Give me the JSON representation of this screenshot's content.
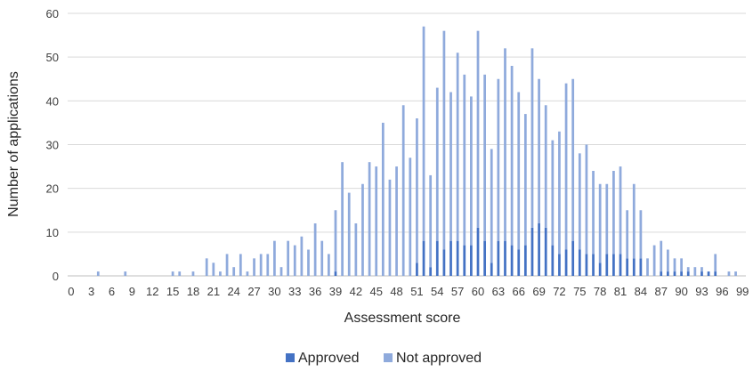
{
  "chart_data": {
    "type": "bar",
    "stacked": true,
    "title": "",
    "xlabel": "Assessment score",
    "ylabel": "Number of applications",
    "ylim": [
      0,
      60
    ],
    "yticks": [
      0,
      10,
      20,
      30,
      40,
      50,
      60
    ],
    "grid": true,
    "legend_position": "bottom",
    "x": [
      0,
      1,
      2,
      3,
      4,
      5,
      6,
      7,
      8,
      9,
      10,
      11,
      12,
      13,
      14,
      15,
      16,
      17,
      18,
      19,
      20,
      21,
      22,
      23,
      24,
      25,
      26,
      27,
      28,
      29,
      30,
      31,
      32,
      33,
      34,
      35,
      36,
      37,
      38,
      39,
      40,
      41,
      42,
      43,
      44,
      45,
      46,
      47,
      48,
      49,
      50,
      51,
      52,
      53,
      54,
      55,
      56,
      57,
      58,
      59,
      60,
      61,
      62,
      63,
      64,
      65,
      66,
      67,
      68,
      69,
      70,
      71,
      72,
      73,
      74,
      75,
      76,
      77,
      78,
      79,
      80,
      81,
      82,
      83,
      84,
      85,
      86,
      87,
      88,
      89,
      90,
      91,
      92,
      93,
      94,
      95,
      96,
      97,
      98,
      99
    ],
    "xtick_labels": [
      "0",
      "3",
      "6",
      "9",
      "12",
      "15",
      "18",
      "21",
      "24",
      "27",
      "30",
      "33",
      "36",
      "39",
      "42",
      "45",
      "48",
      "51",
      "54",
      "57",
      "60",
      "63",
      "66",
      "69",
      "72",
      "75",
      "78",
      "81",
      "84",
      "87",
      "90",
      "93",
      "96",
      "99"
    ],
    "series": [
      {
        "name": "Approved",
        "color": "#4472C4",
        "values": [
          0,
          0,
          0,
          0,
          0,
          0,
          0,
          0,
          0,
          0,
          0,
          0,
          0,
          0,
          0,
          0,
          0,
          0,
          0,
          0,
          0,
          0,
          0,
          0,
          0,
          0,
          0,
          0,
          0,
          0,
          0,
          0,
          0,
          0,
          0,
          0,
          0,
          0,
          0,
          1,
          0,
          0,
          0,
          0,
          0,
          0,
          0,
          0,
          0,
          0,
          0,
          3,
          8,
          2,
          8,
          6,
          8,
          8,
          7,
          7,
          11,
          8,
          3,
          8,
          8,
          7,
          6,
          7,
          11,
          12,
          11,
          7,
          5,
          6,
          8,
          6,
          5,
          5,
          3,
          5,
          5,
          5,
          4,
          4,
          4,
          0,
          0,
          1,
          1,
          1,
          1,
          1,
          0,
          1,
          1,
          1,
          0,
          0,
          0,
          0
        ]
      },
      {
        "name": "Not approved",
        "color": "#8FAADC",
        "values": [
          0,
          0,
          0,
          0,
          1,
          0,
          0,
          0,
          1,
          0,
          0,
          0,
          0,
          0,
          0,
          1,
          1,
          0,
          1,
          0,
          4,
          3,
          1,
          5,
          2,
          5,
          1,
          4,
          5,
          5,
          8,
          2,
          8,
          7,
          9,
          6,
          12,
          8,
          5,
          14,
          26,
          19,
          12,
          21,
          26,
          25,
          35,
          22,
          25,
          39,
          27,
          33,
          49,
          21,
          35,
          50,
          34,
          43,
          39,
          34,
          45,
          38,
          26,
          37,
          44,
          41,
          36,
          30,
          41,
          33,
          28,
          24,
          28,
          38,
          37,
          22,
          25,
          19,
          18,
          16,
          19,
          20,
          11,
          17,
          11,
          4,
          7,
          7,
          5,
          3,
          3,
          1,
          2,
          1,
          0,
          4,
          0,
          1,
          1,
          0
        ]
      }
    ]
  }
}
